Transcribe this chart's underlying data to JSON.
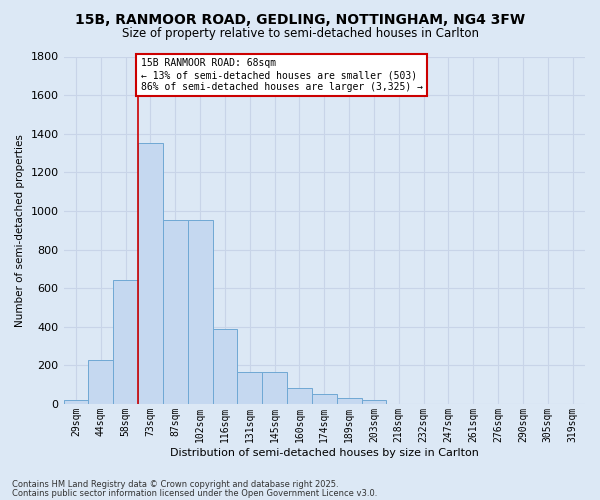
{
  "title_line1": "15B, RANMOOR ROAD, GEDLING, NOTTINGHAM, NG4 3FW",
  "title_line2": "Size of property relative to semi-detached houses in Carlton",
  "xlabel": "Distribution of semi-detached houses by size in Carlton",
  "ylabel": "Number of semi-detached properties",
  "categories": [
    "29sqm",
    "44sqm",
    "58sqm",
    "73sqm",
    "87sqm",
    "102sqm",
    "116sqm",
    "131sqm",
    "145sqm",
    "160sqm",
    "174sqm",
    "189sqm",
    "203sqm",
    "218sqm",
    "232sqm",
    "247sqm",
    "261sqm",
    "276sqm",
    "290sqm",
    "305sqm",
    "319sqm"
  ],
  "values": [
    20,
    230,
    640,
    1350,
    955,
    955,
    390,
    165,
    165,
    85,
    50,
    30,
    20,
    0,
    0,
    0,
    0,
    0,
    0,
    0,
    0
  ],
  "bar_color": "#c5d8f0",
  "bar_edge_color": "#6fa8d4",
  "red_line_index": 2.5,
  "annotation_text": "15B RANMOOR ROAD: 68sqm\n← 13% of semi-detached houses are smaller (503)\n86% of semi-detached houses are larger (3,325) →",
  "annotation_box_color": "#ffffff",
  "annotation_border_color": "#cc0000",
  "ylim": [
    0,
    1800
  ],
  "yticks": [
    0,
    200,
    400,
    600,
    800,
    1000,
    1200,
    1400,
    1600,
    1800
  ],
  "grid_color": "#c8d4e8",
  "background_color": "#dce8f5",
  "footer_line1": "Contains HM Land Registry data © Crown copyright and database right 2025.",
  "footer_line2": "Contains public sector information licensed under the Open Government Licence v3.0.",
  "red_line_color": "#cc0000"
}
